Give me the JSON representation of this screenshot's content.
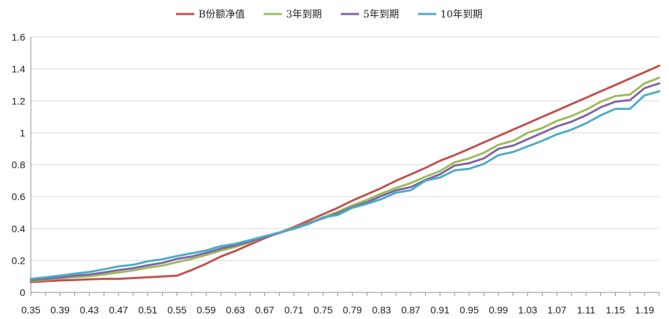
{
  "chart_data": {
    "type": "line",
    "title": "",
    "xlabel": "",
    "ylabel": "",
    "ylim": [
      0,
      1.6
    ],
    "yticks": [
      "0",
      "0.2",
      "0.4",
      "0.6",
      "0.8",
      "1",
      "1.2",
      "1.4",
      "1.6"
    ],
    "grid": "horizontal",
    "legend_position": "top",
    "x_tick_labels": [
      "0.35",
      "0.39",
      "0.43",
      "0.47",
      "0.51",
      "0.55",
      "0.59",
      "0.63",
      "0.67",
      "0.71",
      "0.75",
      "0.79",
      "0.83",
      "0.87",
      "0.91",
      "0.95",
      "0.99",
      "1.03",
      "1.07",
      "1.11",
      "1.15",
      "1.19"
    ],
    "x": [
      0.35,
      0.37,
      0.39,
      0.41,
      0.43,
      0.45,
      0.47,
      0.49,
      0.51,
      0.53,
      0.55,
      0.57,
      0.59,
      0.61,
      0.63,
      0.65,
      0.67,
      0.69,
      0.71,
      0.73,
      0.75,
      0.77,
      0.79,
      0.81,
      0.83,
      0.85,
      0.87,
      0.89,
      0.91,
      0.93,
      0.95,
      0.97,
      0.99,
      1.01,
      1.03,
      1.05,
      1.07,
      1.09,
      1.11,
      1.13,
      1.15,
      1.17,
      1.19,
      1.21
    ],
    "series": [
      {
        "name": "B份额净值",
        "color": "#c0504d",
        "values": [
          0.065,
          0.07,
          0.075,
          0.078,
          0.082,
          0.085,
          0.085,
          0.09,
          0.095,
          0.1,
          0.105,
          0.14,
          0.18,
          0.225,
          0.26,
          0.3,
          0.34,
          0.375,
          0.41,
          0.45,
          0.49,
          0.53,
          0.575,
          0.615,
          0.655,
          0.7,
          0.74,
          0.78,
          0.825,
          0.86,
          0.9,
          0.94,
          0.98,
          1.02,
          1.06,
          1.1,
          1.14,
          1.18,
          1.22,
          1.26,
          1.3,
          1.34,
          1.38,
          1.42
        ]
      },
      {
        "name": "3年到期",
        "color": "#9bbb59",
        "values": [
          0.073,
          0.08,
          0.088,
          0.095,
          0.102,
          0.112,
          0.125,
          0.138,
          0.155,
          0.168,
          0.19,
          0.21,
          0.235,
          0.262,
          0.285,
          0.315,
          0.345,
          0.375,
          0.405,
          0.435,
          0.47,
          0.505,
          0.545,
          0.58,
          0.62,
          0.655,
          0.685,
          0.725,
          0.76,
          0.815,
          0.84,
          0.875,
          0.925,
          0.95,
          1.0,
          1.03,
          1.075,
          1.105,
          1.145,
          1.195,
          1.23,
          1.24,
          1.31,
          1.345
        ]
      },
      {
        "name": "5年到期",
        "color": "#8064a2",
        "values": [
          0.078,
          0.085,
          0.095,
          0.105,
          0.112,
          0.125,
          0.14,
          0.152,
          0.17,
          0.185,
          0.21,
          0.225,
          0.248,
          0.275,
          0.295,
          0.32,
          0.345,
          0.372,
          0.402,
          0.432,
          0.465,
          0.495,
          0.535,
          0.565,
          0.605,
          0.64,
          0.66,
          0.705,
          0.74,
          0.795,
          0.81,
          0.84,
          0.9,
          0.92,
          0.96,
          1.0,
          1.04,
          1.07,
          1.11,
          1.16,
          1.195,
          1.205,
          1.28,
          1.31
        ]
      },
      {
        "name": "10年到期",
        "color": "#4bacc6",
        "values": [
          0.085,
          0.095,
          0.105,
          0.118,
          0.128,
          0.145,
          0.163,
          0.173,
          0.195,
          0.208,
          0.228,
          0.245,
          0.263,
          0.29,
          0.305,
          0.328,
          0.352,
          0.375,
          0.398,
          0.428,
          0.47,
          0.485,
          0.53,
          0.555,
          0.585,
          0.625,
          0.64,
          0.7,
          0.72,
          0.765,
          0.775,
          0.805,
          0.86,
          0.88,
          0.915,
          0.95,
          0.99,
          1.02,
          1.06,
          1.11,
          1.15,
          1.15,
          1.235,
          1.26
        ]
      }
    ]
  }
}
